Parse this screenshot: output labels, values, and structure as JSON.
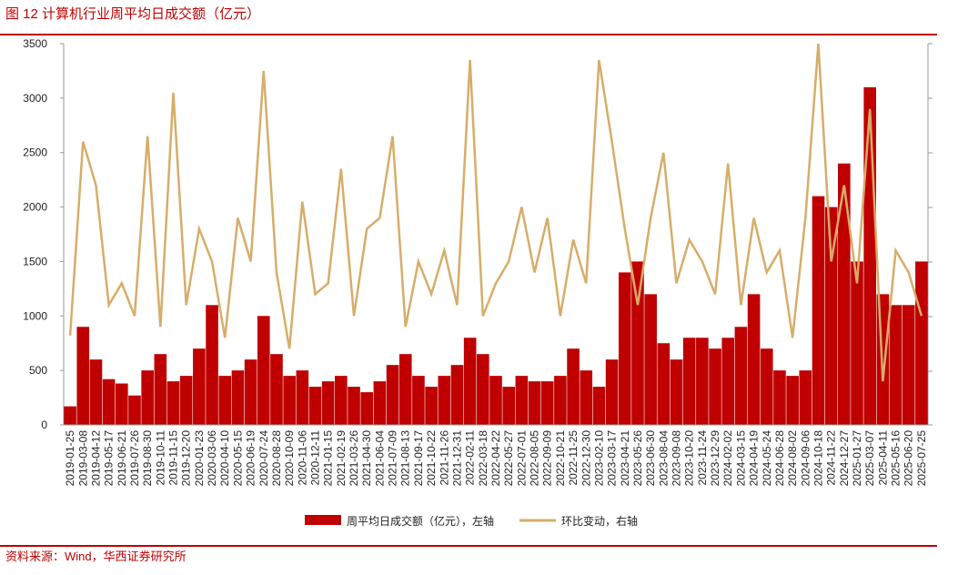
{
  "chart_data": {
    "type": "bar",
    "title": "图 12  计算机行业周平均日成交额（亿元）",
    "source": "资料来源：Wind，华西证券研究所",
    "categories": [
      "2019-01-25",
      "2019-03-08",
      "2019-04-12",
      "2019-05-17",
      "2019-06-21",
      "2019-07-26",
      "2019-08-30",
      "2019-10-11",
      "2019-11-15",
      "2019-12-20",
      "2020-01-23",
      "2020-03-06",
      "2020-04-10",
      "2020-05-15",
      "2020-06-19",
      "2020-07-24",
      "2020-08-28",
      "2020-10-09",
      "2020-11-06",
      "2020-12-11",
      "2021-01-15",
      "2021-02-19",
      "2021-03-26",
      "2021-04-30",
      "2021-06-04",
      "2021-07-09",
      "2021-08-13",
      "2021-09-17",
      "2021-10-22",
      "2021-11-26",
      "2021-12-31",
      "2022-02-11",
      "2022-03-18",
      "2022-04-22",
      "2022-05-27",
      "2022-07-01",
      "2022-08-05",
      "2022-09-09",
      "2022-10-21",
      "2022-11-25",
      "2022-12-30",
      "2023-02-10",
      "2023-03-17",
      "2023-04-21",
      "2023-05-26",
      "2023-06-30",
      "2023-08-04",
      "2023-09-08",
      "2023-10-20",
      "2023-11-24",
      "2023-12-29",
      "2024-02-02",
      "2024-03-15",
      "2024-04-19",
      "2024-05-24",
      "2024-06-28",
      "2024-08-02",
      "2024-09-06",
      "2024-10-18",
      "2024-11-22",
      "2024-12-27",
      "2025-01-27",
      "2025-03-07",
      "2025-04-11",
      "2025-05-16",
      "2025-06-20",
      "2025-07-25"
    ],
    "series": [
      {
        "name": "周平均日成交额（亿元），左轴",
        "type": "bar",
        "color": "#c00000",
        "values": [
          170,
          900,
          600,
          420,
          380,
          270,
          500,
          650,
          400,
          450,
          700,
          1100,
          450,
          500,
          600,
          1000,
          650,
          450,
          500,
          350,
          400,
          450,
          350,
          300,
          400,
          550,
          650,
          450,
          350,
          450,
          550,
          800,
          650,
          450,
          350,
          450,
          400,
          400,
          450,
          700,
          500,
          350,
          600,
          1400,
          1500,
          1200,
          750,
          600,
          800,
          800,
          700,
          800,
          900,
          1200,
          700,
          500,
          450,
          500,
          2100,
          2000,
          2400,
          1500,
          3100,
          1200,
          1100,
          1100,
          1500
        ]
      },
      {
        "name": "环比变动，右轴",
        "type": "line",
        "color": "#d6ad6a",
        "values": [
          820,
          2600,
          2200,
          1100,
          1300,
          1000,
          2650,
          900,
          3050,
          1100,
          1800,
          1500,
          800,
          1900,
          1500,
          3250,
          1400,
          700,
          2050,
          1200,
          1300,
          2350,
          1000,
          1800,
          1900,
          2650,
          900,
          1500,
          1200,
          1600,
          1100,
          3350,
          1000,
          1300,
          1500,
          2000,
          1400,
          1900,
          1000,
          1700,
          1300,
          3350,
          2600,
          1800,
          1100,
          1900,
          2500,
          1300,
          1700,
          1500,
          1200,
          2400,
          1100,
          1900,
          1400,
          1600,
          800,
          1900,
          3500,
          1500,
          2200,
          1300,
          2900,
          400,
          1600,
          1400,
          1000
        ]
      }
    ],
    "ylim": [
      0,
      3500
    ],
    "yticks": [
      0,
      500,
      1000,
      1500,
      2000,
      2500,
      3000,
      3500
    ]
  }
}
